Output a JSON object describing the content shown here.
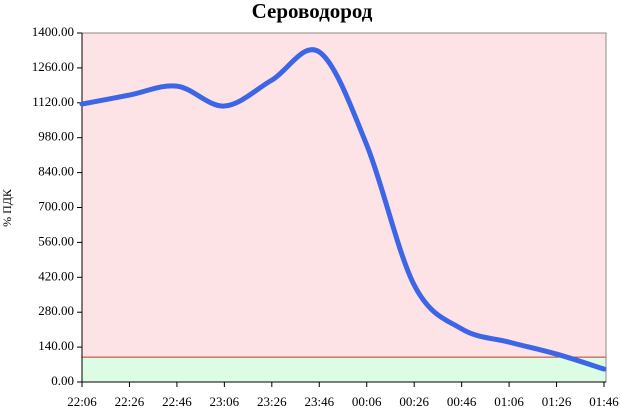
{
  "chart_data": {
    "type": "line",
    "title": "Сероводород",
    "y_label": "% ПДК",
    "categories": [
      "22:06",
      "22:26",
      "22:46",
      "23:06",
      "23:26",
      "23:46",
      "00:06",
      "00:26",
      "00:46",
      "01:06",
      "01:26",
      "01:46"
    ],
    "series": [
      {
        "name": "Сероводород",
        "color": "#3d66e6",
        "values": [
          1115,
          1151,
          1187,
          1107,
          1211,
          1324,
          951,
          389,
          213,
          160,
          112,
          52
        ]
      }
    ],
    "ylim": [
      0,
      1400
    ],
    "yticks": [
      {
        "value": 0,
        "label": "0.00"
      },
      {
        "value": 140,
        "label": "140.00"
      },
      {
        "value": 280,
        "label": "280.00"
      },
      {
        "value": 420,
        "label": "420.00"
      },
      {
        "value": 560,
        "label": "560.00"
      },
      {
        "value": 700,
        "label": "700.00"
      },
      {
        "value": 840,
        "label": "840.00"
      },
      {
        "value": 980,
        "label": "980.00"
      },
      {
        "value": 1120,
        "label": "1120.00"
      },
      {
        "value": 1260,
        "label": "1260.00"
      },
      {
        "value": 1400,
        "label": "1400.00"
      }
    ],
    "threshold": 100,
    "threshold_color": "#c0392b",
    "above_color": "#fde3e6",
    "below_color": "#dcfce4"
  }
}
